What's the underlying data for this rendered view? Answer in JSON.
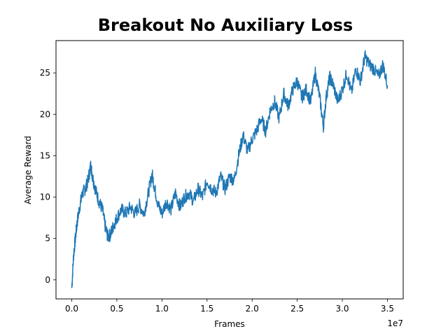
{
  "chart_data": {
    "type": "line",
    "title": "Breakout No Auxiliary Loss",
    "xlabel": "Frames",
    "ylabel": "Average Reward",
    "x_offset_label": "1e7",
    "xlim": [
      -1750000,
      36750000
    ],
    "ylim": [
      -2.3,
      28.9
    ],
    "x_ticks": [
      0,
      5000000,
      10000000,
      15000000,
      20000000,
      25000000,
      30000000,
      35000000
    ],
    "x_tick_labels": [
      "0.0",
      "0.5",
      "1.0",
      "1.5",
      "2.0",
      "2.5",
      "3.0",
      "3.5"
    ],
    "y_ticks": [
      0,
      5,
      10,
      15,
      20,
      25
    ],
    "y_tick_labels": [
      "0",
      "5",
      "10",
      "15",
      "20",
      "25"
    ],
    "grid": false,
    "legend": "none",
    "series": [
      {
        "color": "#1f77b4",
        "x": [
          0,
          200000,
          400000,
          600000,
          900000,
          1200000,
          1500000,
          1800000,
          2100000,
          2300000,
          2600000,
          3000000,
          3400000,
          3700000,
          4000000,
          4300000,
          4600000,
          5000000,
          5500000,
          6000000,
          6500000,
          7000000,
          7500000,
          8000000,
          8500000,
          8900000,
          9200000,
          9600000,
          10000000,
          10500000,
          11000000,
          11500000,
          12000000,
          12500000,
          13000000,
          13500000,
          14000000,
          14500000,
          15000000,
          15500000,
          16000000,
          16500000,
          17000000,
          17500000,
          18000000,
          18500000,
          19000000,
          19500000,
          20000000,
          20500000,
          21000000,
          21500000,
          22000000,
          22500000,
          23000000,
          23500000,
          24000000,
          24500000,
          25000000,
          25500000,
          26000000,
          26500000,
          27000000,
          27500000,
          27900000,
          28200000,
          28600000,
          29000000,
          29500000,
          30000000,
          30500000,
          31000000,
          31500000,
          32000000,
          32500000,
          33000000,
          33500000,
          34000000,
          34500000,
          35000000
        ],
        "y": [
          -1.0,
          3.0,
          5.0,
          7.0,
          9.0,
          10.5,
          11.0,
          12.0,
          13.8,
          12.5,
          11.0,
          9.5,
          8.5,
          6.5,
          5.2,
          5.5,
          6.5,
          7.5,
          8.5,
          8.0,
          8.8,
          8.0,
          9.0,
          8.0,
          10.5,
          12.8,
          11.0,
          9.0,
          8.0,
          9.5,
          8.5,
          10.5,
          8.8,
          10.0,
          10.5,
          9.5,
          11.0,
          10.0,
          12.0,
          11.0,
          10.5,
          12.5,
          11.0,
          12.5,
          12.0,
          15.0,
          17.5,
          15.5,
          17.0,
          18.0,
          19.5,
          18.0,
          20.5,
          21.5,
          19.5,
          22.5,
          21.0,
          23.0,
          24.0,
          22.0,
          23.0,
          21.5,
          25.0,
          22.0,
          18.5,
          22.0,
          24.5,
          23.5,
          21.5,
          23.0,
          25.0,
          22.5,
          25.5,
          24.0,
          27.0,
          26.0,
          25.5,
          24.5,
          26.0,
          23.5
        ]
      }
    ]
  }
}
